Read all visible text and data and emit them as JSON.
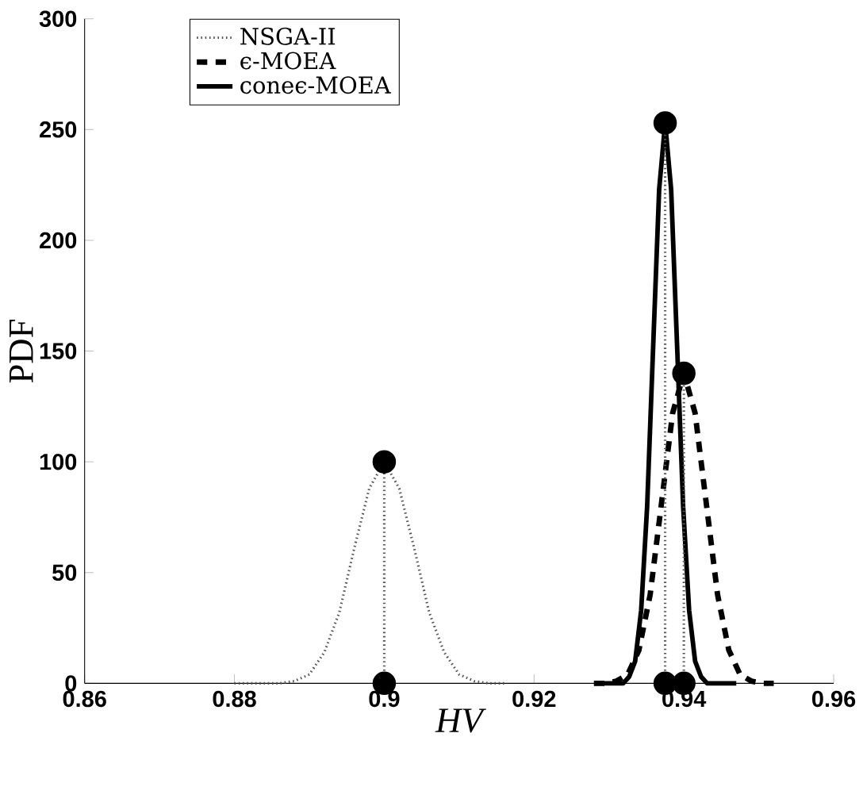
{
  "chart_data": {
    "type": "line",
    "xlabel": "HV",
    "ylabel": "PDF",
    "xlim": [
      0.86,
      0.96
    ],
    "ylim": [
      0,
      300
    ],
    "xticks": [
      0.86,
      0.88,
      0.9,
      0.92,
      0.94,
      0.96
    ],
    "yticks": [
      0,
      50,
      100,
      150,
      200,
      250,
      300
    ],
    "legend": "top left",
    "grid": false,
    "marker": "none",
    "series": [
      {
        "name": "NSGA-II",
        "color": "#555555",
        "line_style": "dotted",
        "x": [
          0.88,
          0.884,
          0.886,
          0.888,
          0.89,
          0.892,
          0.894,
          0.896,
          0.898,
          0.9,
          0.902,
          0.904,
          0.906,
          0.908,
          0.91,
          0.912,
          0.914,
          0.916
        ],
        "values": [
          0,
          0,
          0,
          1,
          4,
          14,
          32,
          61,
          88,
          100,
          88,
          61,
          32,
          14,
          4,
          1,
          0,
          0
        ]
      },
      {
        "name": "ϵ-MOEA",
        "color": "#000000",
        "line_style": "dashed",
        "x": [
          0.928,
          0.9295,
          0.931,
          0.9325,
          0.934,
          0.9355,
          0.937,
          0.9385,
          0.94,
          0.9415,
          0.943,
          0.9445,
          0.946,
          0.9475,
          0.949,
          0.9505,
          0.952
        ],
        "values": [
          0,
          0,
          1,
          4,
          15,
          40,
          81,
          122,
          140,
          122,
          81,
          40,
          15,
          4,
          1,
          0,
          0
        ]
      },
      {
        "name": "coneϵ-MOEA",
        "color": "#000000",
        "line_style": "solid",
        "x": [
          0.928,
          0.9319,
          0.9327,
          0.9335,
          0.9343,
          0.9351,
          0.9359,
          0.9367,
          0.9375,
          0.9383,
          0.9391,
          0.9399,
          0.9407,
          0.9415,
          0.9423,
          0.9431,
          0.947
        ],
        "values": [
          0,
          0,
          3,
          10,
          33,
          80,
          152,
          223,
          253,
          223,
          152,
          80,
          33,
          10,
          3,
          0,
          0
        ]
      },
      {
        "color": "#555555",
        "line_style": "dotted",
        "marker": "circle",
        "x": [
          0.9,
          0.9
        ],
        "values": [
          0,
          100
        ]
      },
      {
        "color": "#555555",
        "line_style": "dotted",
        "marker": "circle",
        "x": [
          0.94,
          0.94
        ],
        "values": [
          0,
          140
        ]
      },
      {
        "color": "#555555",
        "line_style": "dotted",
        "marker": "circle",
        "x": [
          0.9375,
          0.9375
        ],
        "values": [
          0,
          253
        ]
      }
    ]
  }
}
